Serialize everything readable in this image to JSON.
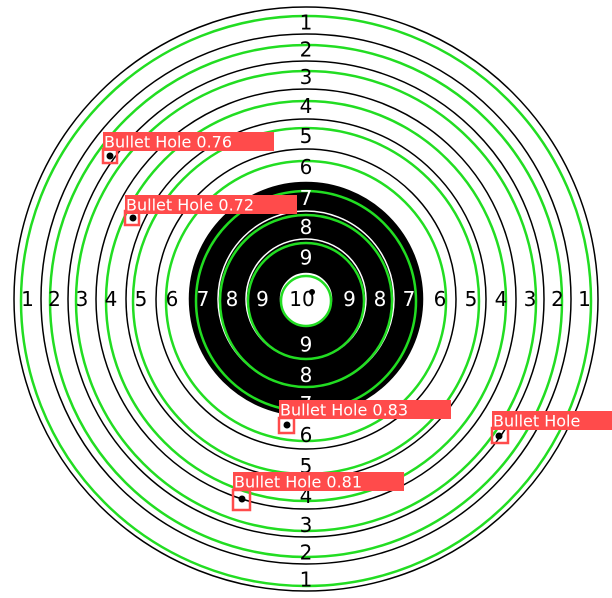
{
  "target": {
    "ring_scores": [
      1,
      2,
      3,
      4,
      5,
      6,
      7,
      8,
      9,
      10
    ],
    "black_rings_from": 7,
    "colors": {
      "ring_line": "#000000",
      "detected_ring": "#22dd22",
      "paper": "#ffffff",
      "black_zone": "#000000"
    }
  },
  "detections": [
    {
      "label": "Bullet Hole 0.76",
      "class": "Bullet Hole",
      "confidence": "0.76"
    },
    {
      "label": "Bullet Hole 0.72",
      "class": "Bullet Hole",
      "confidence": "0.72"
    },
    {
      "label": "Bullet Hole 0.83",
      "class": "Bullet Hole",
      "confidence": "0.83"
    },
    {
      "label": "Bullet Hole",
      "class": "Bullet Hole",
      "confidence": ""
    },
    {
      "label": "Bullet Hole 0.81",
      "class": "Bullet Hole",
      "confidence": "0.81"
    }
  ],
  "detection_box_color": "#ff4b4b"
}
